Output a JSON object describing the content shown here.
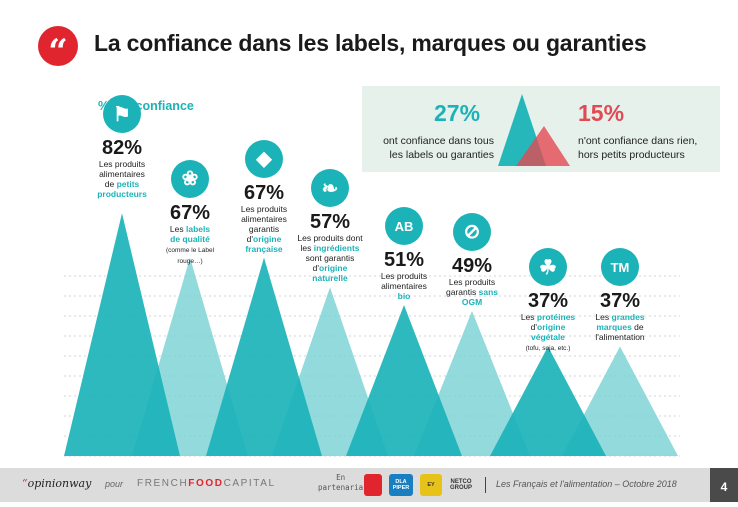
{
  "header": {
    "quote_glyph": "“",
    "title": "La confiance dans les labels, marques ou garanties"
  },
  "subtitle": "% ont confiance",
  "summary": {
    "left_pct": "27%",
    "left_text_1": "ont confiance dans tous",
    "left_text_2": "les labels ou garanties",
    "right_pct": "15%",
    "right_text_1": "n'ont confiance dans rien,",
    "right_text_2": "hors petits producteurs",
    "colors": {
      "teal": "#1bb3b8",
      "red": "#e24a53"
    }
  },
  "chart_data": {
    "type": "bar",
    "ylabel": "% ont confiance",
    "ylim": [
      0,
      100
    ],
    "grid": true,
    "categories": [
      "Les produits alimentaires de petits producteurs",
      "Les labels de qualité",
      "Les produits alimentaires garantis d'origine française",
      "Les produits dont les ingrédients sont garantis d'origine naturelle",
      "Les produits alimentaires bio",
      "Les produits garantis sans OGM",
      "Les protéines d'origine végétale",
      "Les grandes marques de l'alimentation"
    ],
    "values": [
      82,
      67,
      67,
      57,
      51,
      49,
      37,
      37
    ],
    "colors": {
      "front": "#1bb3b8",
      "back": "#7fd3d6"
    }
  },
  "items": [
    {
      "icon": "farmer-icon",
      "icon_glyph": "⚑",
      "pct": "82%",
      "lines": [
        [
          [
            "Les produits",
            false
          ]
        ],
        [
          [
            "alimentaires",
            false
          ]
        ],
        [
          [
            "de ",
            false
          ],
          [
            "petits",
            true
          ]
        ],
        [
          [
            "producteurs",
            true
          ]
        ]
      ],
      "note": ""
    },
    {
      "icon": "quality-label-icon",
      "icon_glyph": "❀",
      "pct": "67%",
      "lines": [
        [
          [
            "Les ",
            false
          ],
          [
            "labels",
            true
          ]
        ],
        [
          [
            "de qualité",
            true
          ]
        ]
      ],
      "note_1": "(comme le Label",
      "note_2": "rouge…)"
    },
    {
      "icon": "france-map-icon",
      "icon_glyph": "◆",
      "pct": "67%",
      "lines": [
        [
          [
            "Les produits",
            false
          ]
        ],
        [
          [
            "alimentaires",
            false
          ]
        ],
        [
          [
            "garantis",
            false
          ]
        ],
        [
          [
            "d'",
            false
          ],
          [
            "origine",
            true
          ]
        ],
        [
          [
            "française",
            true
          ]
        ]
      ],
      "note": ""
    },
    {
      "icon": "leaf-icon",
      "icon_glyph": "❧",
      "pct": "57%",
      "lines": [
        [
          [
            "Les produits dont",
            false
          ]
        ],
        [
          [
            "les ",
            false
          ],
          [
            "ingrédients",
            true
          ]
        ],
        [
          [
            "sont garantis",
            false
          ]
        ],
        [
          [
            "d'",
            false
          ],
          [
            "origine",
            true
          ]
        ],
        [
          [
            "naturelle",
            true
          ]
        ]
      ],
      "note": ""
    },
    {
      "icon": "ab-organic-icon",
      "icon_glyph": "AB",
      "pct": "51%",
      "lines": [
        [
          [
            "Les produits",
            false
          ]
        ],
        [
          [
            "alimentaires",
            false
          ]
        ],
        [
          [
            "bio",
            true
          ]
        ]
      ],
      "note": ""
    },
    {
      "icon": "no-gmo-icon",
      "icon_glyph": "⊘",
      "pct": "49%",
      "lines": [
        [
          [
            "Les produits",
            false
          ]
        ],
        [
          [
            "garantis ",
            false
          ],
          [
            "sans",
            true
          ]
        ],
        [
          [
            "OGM",
            true
          ]
        ]
      ],
      "note": ""
    },
    {
      "icon": "vegetables-icon",
      "icon_glyph": "☘",
      "pct": "37%",
      "lines": [
        [
          [
            "Les ",
            false
          ],
          [
            "protéines",
            true
          ]
        ],
        [
          [
            "d'",
            false
          ],
          [
            "origine",
            true
          ]
        ],
        [
          [
            "végétale",
            true
          ]
        ]
      ],
      "note_1": "(tofu, soja, etc.)"
    },
    {
      "icon": "trademark-icon",
      "icon_glyph": "TM",
      "pct": "37%",
      "lines": [
        [
          [
            "Les ",
            false
          ],
          [
            "grandes",
            true
          ]
        ],
        [
          [
            "marques",
            true
          ],
          [
            " de",
            false
          ]
        ],
        [
          [
            "l'alimentation",
            false
          ]
        ]
      ],
      "note": ""
    }
  ],
  "footer": {
    "brand_q": "“",
    "brand": "opinionway",
    "pour": "pour",
    "fcp_1": "FRENCH",
    "fcp_2": "FOOD",
    "fcp_3": "CAPITAL",
    "partner_1": "En",
    "partner_2": "partenaria",
    "logo_a": "",
    "logo_b": "DLA PIPER",
    "logo_c": "EY",
    "logo_d": "NETCO GROUP",
    "report": "Les Français et l'alimentation – Octobre 2018",
    "page": "4"
  }
}
